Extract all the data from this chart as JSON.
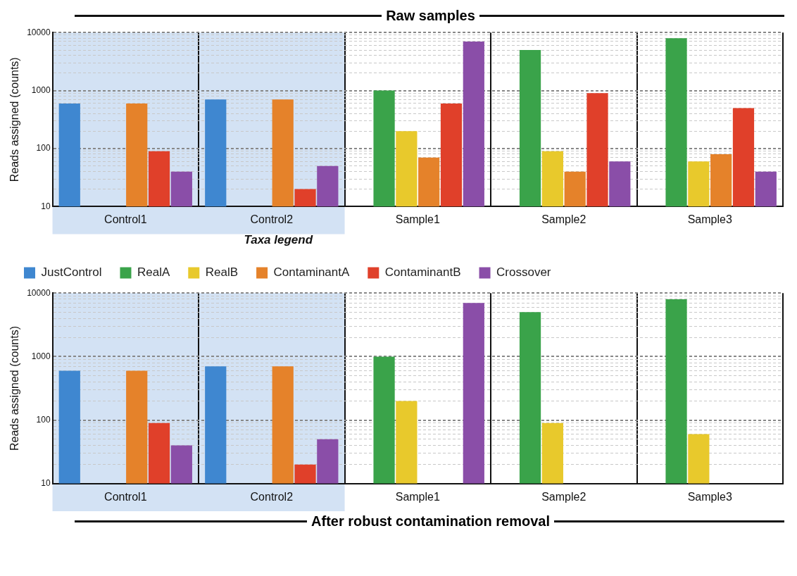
{
  "chart_data": [
    {
      "type": "bar",
      "title": "Raw samples",
      "ylabel": "Reads assigned (counts)",
      "categories": [
        "Control1",
        "Control2",
        "Sample1",
        "Sample2",
        "Sample3"
      ],
      "series": [
        {
          "name": "JustControl",
          "color": "#3f87d0",
          "values": [
            600,
            700,
            null,
            null,
            null
          ]
        },
        {
          "name": "RealA",
          "color": "#3aa34a",
          "values": [
            null,
            null,
            1000,
            5000,
            8000
          ]
        },
        {
          "name": "RealB",
          "color": "#e8c92c",
          "values": [
            null,
            null,
            200,
            90,
            60
          ]
        },
        {
          "name": "ContaminantA",
          "color": "#e5822a",
          "values": [
            600,
            700,
            70,
            40,
            80
          ]
        },
        {
          "name": "ContaminantB",
          "color": "#e0402a",
          "values": [
            90,
            20,
            600,
            900,
            500
          ]
        },
        {
          "name": "Crossover",
          "color": "#8a4ea8",
          "values": [
            40,
            50,
            7000,
            60,
            40
          ]
        }
      ],
      "log": true,
      "ylim": [
        10,
        10000
      ],
      "yticks": [
        10,
        {
          "value": 20,
          "label": null
        },
        {
          "value": 30,
          "label": null
        },
        {
          "value": 40,
          "label": null
        },
        {
          "value": 50,
          "label": null
        },
        {
          "value": 60,
          "label": null
        },
        {
          "value": 70,
          "label": null
        },
        {
          "value": 80,
          "label": null
        },
        {
          "value": 90,
          "label": null
        },
        100,
        {
          "value": 200,
          "label": null
        },
        {
          "value": 300,
          "label": null
        },
        {
          "value": 400,
          "label": null
        },
        {
          "value": 500,
          "label": null
        },
        {
          "value": 600,
          "label": null
        },
        {
          "value": 700,
          "label": null
        },
        {
          "value": 800,
          "label": null
        },
        {
          "value": 900,
          "label": null
        },
        1000,
        {
          "value": 2000,
          "label": null
        },
        {
          "value": 3000,
          "label": null
        },
        {
          "value": 4000,
          "label": null
        },
        {
          "value": 5000,
          "label": null
        },
        {
          "value": 6000,
          "label": null
        },
        {
          "value": 7000,
          "label": null
        },
        {
          "value": 8000,
          "label": null
        },
        {
          "value": 9000,
          "label": null
        },
        10000
      ],
      "grid": true,
      "legend": "bottom",
      "legend_title": "Taxa legend",
      "bands": [
        {
          "axis": "x",
          "from": "Control1",
          "to": "Control2",
          "color": "#d3e2f4"
        }
      ]
    },
    {
      "type": "bar",
      "title": "After robust contamination removal",
      "ylabel": "Reads assigned (counts)",
      "categories": [
        "Control1",
        "Control2",
        "Sample1",
        "Sample2",
        "Sample3"
      ],
      "series": [
        {
          "color": "#3f87d0",
          "values": [
            600,
            700,
            null,
            null,
            null
          ]
        },
        {
          "color": "#3aa34a",
          "values": [
            null,
            null,
            1000,
            5000,
            8000
          ]
        },
        {
          "color": "#e8c92c",
          "values": [
            null,
            null,
            200,
            90,
            60
          ]
        },
        {
          "color": "#e5822a",
          "values": [
            600,
            700,
            null,
            null,
            null
          ]
        },
        {
          "color": "#e0402a",
          "values": [
            90,
            20,
            null,
            null,
            null
          ]
        },
        {
          "color": "#8a4ea8",
          "values": [
            40,
            50,
            7000,
            null,
            null
          ]
        }
      ],
      "log": true,
      "ylim": [
        10,
        10000
      ],
      "yticks": [
        10,
        {
          "value": 20,
          "label": null
        },
        {
          "value": 30,
          "label": null
        },
        {
          "value": 40,
          "label": null
        },
        {
          "value": 50,
          "label": null
        },
        {
          "value": 60,
          "label": null
        },
        {
          "value": 70,
          "label": null
        },
        {
          "value": 80,
          "label": null
        },
        {
          "value": 90,
          "label": null
        },
        100,
        {
          "value": 200,
          "label": null
        },
        {
          "value": 300,
          "label": null
        },
        {
          "value": 400,
          "label": null
        },
        {
          "value": 500,
          "label": null
        },
        {
          "value": 600,
          "label": null
        },
        {
          "value": 700,
          "label": null
        },
        {
          "value": 800,
          "label": null
        },
        {
          "value": 900,
          "label": null
        },
        1000,
        {
          "value": 2000,
          "label": null
        },
        {
          "value": 3000,
          "label": null
        },
        {
          "value": 4000,
          "label": null
        },
        {
          "value": 5000,
          "label": null
        },
        {
          "value": 6000,
          "label": null
        },
        {
          "value": 7000,
          "label": null
        },
        {
          "value": 8000,
          "label": null
        },
        {
          "value": 9000,
          "label": null
        },
        10000
      ],
      "grid": true,
      "bands": [
        {
          "axis": "x",
          "from": "Control1",
          "to": "Control2",
          "color": "#d3e2f4"
        }
      ]
    }
  ]
}
